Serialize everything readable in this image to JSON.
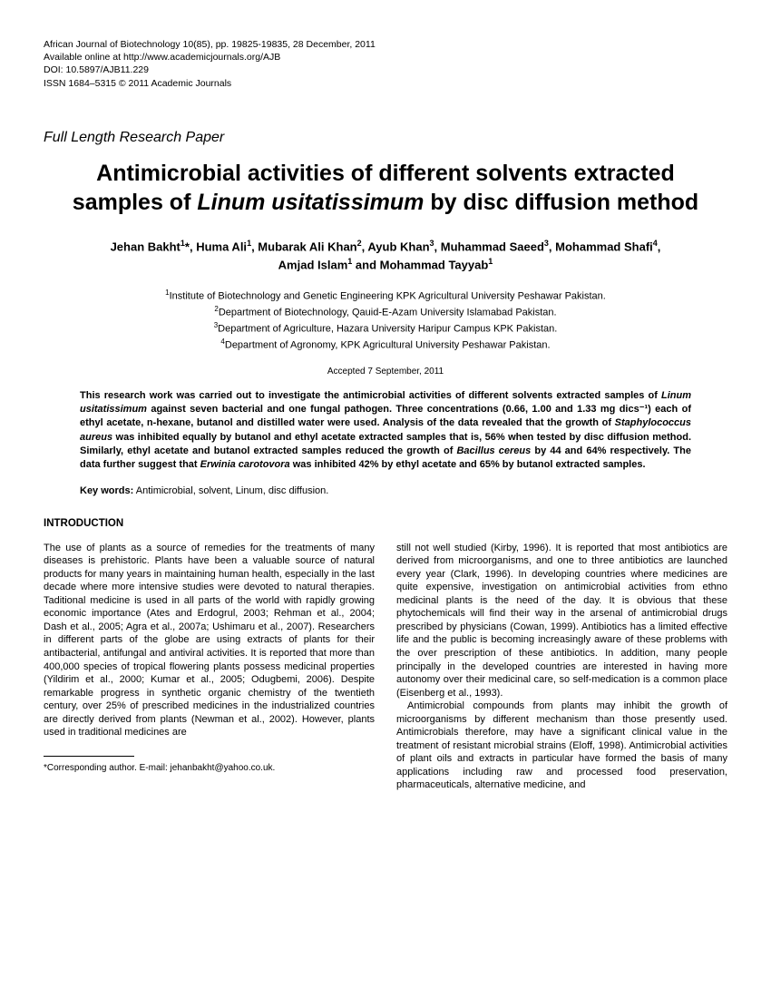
{
  "journal": {
    "line1": "African Journal of Biotechnology 10(85), pp. 19825-19835, 28 December, 2011",
    "line2": "Available online at http://www.academicjournals.org/AJB",
    "line3": "DOI: 10.5897/AJB11.229",
    "line4": "ISSN 1684–5315 © 2011 Academic Journals"
  },
  "paper_type": "Full Length Research Paper",
  "title_pre": "Antimicrobial activities of different solvents extracted samples of ",
  "title_italic": "Linum usitatissimum",
  "title_post": " by disc diffusion method",
  "authors_line1_html": "Jehan Bakht<sup>1</sup>*, Huma Ali<sup>1</sup>, Mubarak Ali Khan<sup>2</sup>, Ayub Khan<sup>3</sup>, Muhammad Saeed<sup>3</sup>, Mohammad Shafi<sup>4</sup>, Amjad Islam<sup>1</sup> and Mohammad Tayyab<sup>1</sup>",
  "affil_html": "<sup>1</sup>Institute of Biotechnology and Genetic Engineering KPK Agricultural University Peshawar Pakistan.<br><sup>2</sup>Department of Biotechnology, Qauid-E-Azam University Islamabad Pakistan.<br><sup>3</sup>Department of Agriculture, Hazara University Haripur Campus KPK Pakistan.<br><sup>4</sup>Department of Agronomy, KPK Agricultural University Peshawar Pakistan.",
  "accepted": "Accepted 7 September, 2011",
  "abstract_pre": "This research work was carried out to investigate the antimicrobial activities of different solvents extracted samples of ",
  "abstract_italic1": "Linum usitatissimum",
  "abstract_mid1": " against seven bacterial and one fungal pathogen. Three concentrations (0.66, 1.00 and 1.33 mg dics⁻¹) each of ethyl acetate, n-hexane, butanol and distilled water were used. Analysis of the data revealed that the growth of ",
  "abstract_italic2": "Staphylococcus aureus",
  "abstract_mid2": " was inhibited equally by butanol and ethyl acetate extracted samples that is, 56% when tested by disc diffusion method. Similarly, ethyl acetate and butanol extracted samples reduced the growth of ",
  "abstract_italic3": "Bacillus cereus",
  "abstract_mid3": " by 44 and 64% respectively. The data further suggest that ",
  "abstract_italic4": "Erwinia carotovora",
  "abstract_post": " was inhibited 42% by ethyl acetate and 65% by butanol extracted samples.",
  "keywords_label": "Key words:",
  "keywords_text": " Antimicrobial, solvent, Linum, disc diffusion.",
  "section_intro": "INTRODUCTION",
  "col1_p1": "The use of plants as a source of remedies for the treatments of many diseases is prehistoric. Plants have been a valuable source of natural products for many years in maintaining human health, especially in the last decade where more intensive studies were devoted to natural therapies. Taditional medicine is used in all parts of the world with rapidly growing economic importance (Ates and Erdogrul, 2003; Rehman et al., 2004; Dash et al., 2005; Agra et al., 2007a; Ushimaru et al., 2007). Researchers in different parts of the globe are using extracts of plants for their antibacterial, antifungal and antiviral activities. It is reported that more than 400,000 species of tropical flowering plants possess medicinal properties (Yildirim et al., 2000; Kumar et al., 2005; Odugbemi, 2006). Despite remarkable progress in synthetic organic chemistry of the twentieth century, over 25% of prescribed medicines in the industrialized countries are directly derived from plants (Newman et al., 2002). However, plants used in traditional medicines are",
  "col2_p1": "still not well studied (Kirby, 1996). It is reported that most antibiotics are derived from microorganisms, and one to three antibiotics are launched every year (Clark, 1996). In developing countries where medicines are quite expensive, investigation on antimicrobial activities from ethno medicinal plants is the need of the day. It is obvious that these phytochemicals will find their way in the arsenal of antimicrobial drugs prescribed by physicians (Cowan, 1999). Antibiotics has a limited effective life and the public is becoming increasingly aware of these problems with the over prescription of these antibiotics. In addition, many people principally in the developed countries are interested in having more autonomy over their medicinal care, so self-medication is a common place (Eisenberg et al., 1993).",
  "col2_p2": "Antimicrobial compounds from plants may inhibit the growth of microorganisms by different mechanism than those presently used. Antimicrobials therefore, may have a significant clinical value in the treatment of resistant microbial strains (Eloff, 1998). Antimicrobial activities of plant oils and extracts in particular have formed the basis of many applications including raw and processed food preservation, pharmaceuticals, alternative medicine, and",
  "footnote": "*Corresponding author. E-mail: jehanbakht@yahoo.co.uk."
}
